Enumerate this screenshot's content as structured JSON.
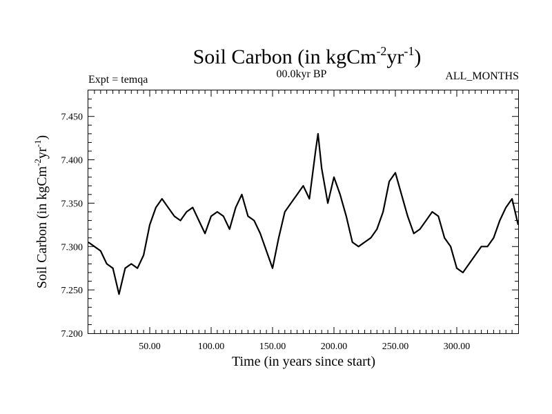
{
  "header": {
    "title_prefix": "Soil Carbon (in kgCm",
    "title_sup1": "-2",
    "title_mid": "yr",
    "title_sup2": "-1",
    "title_suffix": ")",
    "expt": "Expt = temqa",
    "period": "00.0kyr BP",
    "months": "ALL_MONTHS"
  },
  "axes": {
    "xlabel": "Time (in years since start)",
    "ylabel_prefix": "Soil Carbon (in kgCm",
    "ylabel_sup1": "-2",
    "ylabel_mid": "yr",
    "ylabel_sup2": "-1",
    "ylabel_suffix": ")",
    "xticks": [
      "50.00",
      "100.00",
      "150.00",
      "200.00",
      "250.00",
      "300.00"
    ],
    "yticks": [
      "7.200",
      "7.250",
      "7.300",
      "7.350",
      "7.400",
      "7.450"
    ]
  },
  "chart_data": {
    "type": "line",
    "xlim": [
      0,
      350
    ],
    "ylim": [
      7.2,
      7.48
    ],
    "x_tick_values": [
      50,
      100,
      150,
      200,
      250,
      300
    ],
    "y_tick_values": [
      7.2,
      7.25,
      7.3,
      7.35,
      7.4,
      7.45
    ],
    "grid": false,
    "line_color": "#000000",
    "series": [
      {
        "x": [
          0,
          5,
          10,
          15,
          20,
          25,
          30,
          35,
          40,
          45,
          50,
          55,
          60,
          65,
          70,
          75,
          80,
          85,
          90,
          95,
          100,
          105,
          110,
          115,
          120,
          125,
          130,
          135,
          140,
          145,
          150,
          155,
          160,
          165,
          170,
          175,
          180,
          185,
          187,
          190,
          195,
          200,
          205,
          210,
          215,
          220,
          225,
          230,
          235,
          240,
          245,
          250,
          255,
          260,
          265,
          270,
          275,
          280,
          285,
          290,
          295,
          300,
          305,
          310,
          315,
          320,
          325,
          330,
          335,
          340,
          345,
          350
        ],
        "y": [
          7.305,
          7.3,
          7.295,
          7.28,
          7.275,
          7.245,
          7.275,
          7.28,
          7.275,
          7.29,
          7.325,
          7.345,
          7.355,
          7.345,
          7.335,
          7.33,
          7.34,
          7.345,
          7.33,
          7.315,
          7.335,
          7.34,
          7.335,
          7.32,
          7.345,
          7.36,
          7.335,
          7.33,
          7.315,
          7.295,
          7.275,
          7.31,
          7.34,
          7.35,
          7.36,
          7.37,
          7.355,
          7.41,
          7.43,
          7.39,
          7.35,
          7.38,
          7.36,
          7.335,
          7.305,
          7.3,
          7.305,
          7.31,
          7.32,
          7.34,
          7.375,
          7.385,
          7.36,
          7.335,
          7.315,
          7.32,
          7.33,
          7.34,
          7.335,
          7.31,
          7.3,
          7.275,
          7.27,
          7.28,
          7.29,
          7.3,
          7.3,
          7.31,
          7.33,
          7.345,
          7.355,
          7.325
        ]
      }
    ]
  }
}
